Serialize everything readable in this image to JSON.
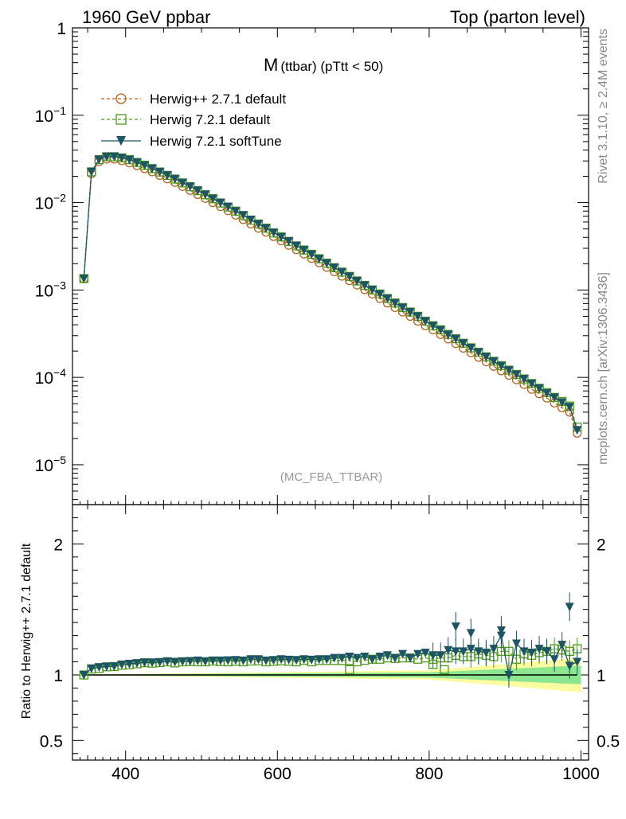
{
  "header": {
    "left": "1960 GeV ppbar",
    "right": "Top (parton level)"
  },
  "side_labels": {
    "rivet": "Rivet 3.1.10, ≥ 2.4M events",
    "source": "mcplots.cern.ch [arXiv:1306.3436]"
  },
  "chart_data": {
    "type": "line",
    "title_main": "M",
    "title_sub": "(ttbar) (pTtt < 50)",
    "watermark": "(MC_FBA_TTBAR)",
    "xlim": [
      330,
      1010
    ],
    "x_ticks": [
      "400",
      "600",
      "800",
      "1000"
    ],
    "x_tick_values": [
      400,
      600,
      800,
      1000
    ],
    "main_panel": {
      "yscale": "log",
      "ylim": [
        3.5e-06,
        1
      ],
      "y_ticks": [
        {
          "value": 1,
          "base": "1",
          "exp": ""
        },
        {
          "value": 0.1,
          "base": "10",
          "exp": "−1"
        },
        {
          "value": 0.01,
          "base": "10",
          "exp": "−2"
        },
        {
          "value": 0.001,
          "base": "10",
          "exp": "−3"
        },
        {
          "value": 0.0001,
          "base": "10",
          "exp": "−4"
        },
        {
          "value": 1e-05,
          "base": "10",
          "exp": "−5"
        }
      ],
      "x": [
        345,
        355,
        365,
        375,
        385,
        395,
        405,
        415,
        425,
        435,
        445,
        455,
        465,
        475,
        485,
        495,
        505,
        515,
        525,
        535,
        545,
        555,
        565,
        575,
        585,
        595,
        605,
        615,
        625,
        635,
        645,
        655,
        665,
        675,
        685,
        695,
        705,
        715,
        725,
        735,
        745,
        755,
        765,
        775,
        785,
        795,
        805,
        815,
        825,
        835,
        845,
        855,
        865,
        875,
        885,
        895,
        905,
        915,
        925,
        935,
        945,
        955,
        965,
        975,
        985,
        995
      ],
      "series": [
        {
          "name": "Herwig++ 2.7.1 default",
          "color": "#b85f1c",
          "marker": "circle",
          "line": "dashed",
          "values": [
            0.00135,
            0.0215,
            0.0295,
            0.0315,
            0.0315,
            0.0302,
            0.0285,
            0.0265,
            0.0245,
            0.0225,
            0.0205,
            0.0187,
            0.017,
            0.0153,
            0.0138,
            0.0124,
            0.0112,
            0.01,
            0.009,
            0.0081,
            0.0072,
            0.0064,
            0.0057,
            0.0051,
            0.0046,
            0.0041,
            0.00365,
            0.00325,
            0.0029,
            0.00258,
            0.0023,
            0.00205,
            0.00182,
            0.00162,
            0.00144,
            0.00128,
            0.00114,
            0.00101,
            0.0009,
            0.0008,
            0.00071,
            0.00063,
            0.00056,
            0.0005,
            0.00044,
            0.00039,
            0.00035,
            0.00031,
            0.000275,
            0.000244,
            0.000216,
            0.000192,
            0.00017,
            0.000151,
            0.000134,
            0.000119,
            0.000106,
            9.4e-05,
            8.3e-05,
            7.3e-05,
            6.5e-05,
            5.8e-05,
            5.1e-05,
            4.5e-05,
            4e-05,
            2.3e-05
          ]
        },
        {
          "name": "Herwig 7.2.1 default",
          "color": "#4f9a1a",
          "marker": "square",
          "line": "dashed",
          "values": [
            0.00135,
            0.0225,
            0.031,
            0.0335,
            0.0335,
            0.0325,
            0.031,
            0.0288,
            0.0268,
            0.0245,
            0.0224,
            0.0205,
            0.0186,
            0.0168,
            0.0152,
            0.0137,
            0.0123,
            0.0111,
            0.0099,
            0.0089,
            0.008,
            0.0071,
            0.0063,
            0.0057,
            0.0051,
            0.0045,
            0.00405,
            0.0036,
            0.0032,
            0.00287,
            0.00256,
            0.00228,
            0.00203,
            0.0018,
            0.0016,
            0.00143,
            0.00127,
            0.00113,
            0.001,
            0.0009,
            0.0008,
            0.00071,
            0.00063,
            0.00056,
            0.0005,
            0.00044,
            0.00039,
            0.00035,
            0.00031,
            0.000277,
            0.000246,
            0.000218,
            0.000194,
            0.000172,
            0.000153,
            0.000136,
            0.000121,
            0.000108,
            9.6e-05,
            8.5e-05,
            7.5e-05,
            6.7e-05,
            5.9e-05,
            5.3e-05,
            4.7e-05,
            2.7e-05
          ]
        },
        {
          "name": "Herwig 7.2.1 softTune",
          "color": "#1c5564",
          "marker": "triangle-down",
          "line": "solid",
          "values": [
            0.00135,
            0.0225,
            0.0312,
            0.0335,
            0.0336,
            0.0326,
            0.031,
            0.0289,
            0.0268,
            0.0246,
            0.0225,
            0.0206,
            0.0187,
            0.0169,
            0.0153,
            0.0138,
            0.0124,
            0.0111,
            0.01,
            0.009,
            0.008,
            0.0072,
            0.0064,
            0.0057,
            0.0051,
            0.00455,
            0.00405,
            0.00362,
            0.00322,
            0.00287,
            0.00256,
            0.00228,
            0.00203,
            0.00181,
            0.00161,
            0.00143,
            0.00127,
            0.00113,
            0.00101,
            0.0009,
            0.0008,
            0.00071,
            0.00063,
            0.00056,
            0.0005,
            0.00044,
            0.00039,
            0.00035,
            0.00031,
            0.000277,
            0.000246,
            0.000218,
            0.000194,
            0.000172,
            0.000153,
            0.000136,
            0.000121,
            0.000108,
            9.6e-05,
            8.5e-05,
            7.5e-05,
            6.6e-05,
            5.9e-05,
            5.2e-05,
            4.6e-05,
            2.5e-05
          ]
        }
      ]
    },
    "ratio_panel": {
      "ylabel": "Ratio to Herwig++ 2.7.1 default",
      "ylim": [
        0.35,
        2.3
      ],
      "y_ticks": [
        {
          "value": 0.5,
          "label": "0.5"
        },
        {
          "value": 1,
          "label": "1"
        },
        {
          "value": 2,
          "label": "2"
        }
      ],
      "reference": 1.0,
      "band_inner_halfwidth_at": {
        "x": [
          345,
          800,
          995
        ],
        "halfwidth": [
          0.003,
          0.02,
          0.07
        ]
      },
      "band_outer_halfwidth_at": {
        "x": [
          345,
          800,
          995
        ],
        "halfwidth": [
          0.004,
          0.035,
          0.13
        ]
      },
      "ratio_default": [
        1.0,
        1.045,
        1.05,
        1.062,
        1.064,
        1.074,
        1.078,
        1.085,
        1.093,
        1.09,
        1.094,
        1.1,
        1.092,
        1.1,
        1.102,
        1.1,
        1.1,
        1.106,
        1.102,
        1.1,
        1.104,
        1.1,
        1.106,
        1.108,
        1.1,
        1.104,
        1.108,
        1.104,
        1.1,
        1.112,
        1.1,
        1.11,
        1.11,
        1.11,
        1.11,
        1.11,
        1.1,
        1.112,
        1.12,
        1.12,
        1.13,
        1.126,
        1.13,
        1.13,
        1.12,
        1.13,
        1.12,
        1.13,
        1.13,
        1.15,
        1.14,
        1.14,
        1.16,
        1.15,
        1.14,
        1.18,
        1.18,
        1.12,
        1.16,
        1.15,
        1.17,
        1.18,
        1.2,
        1.19,
        1.18,
        1.2
      ],
      "ratio_default_extra_low": {
        "x": [
          695,
          805,
          820
        ],
        "values": [
          1.04,
          1.08,
          1.04
        ]
      },
      "ratio_softtune": [
        1.0,
        1.05,
        1.06,
        1.064,
        1.066,
        1.08,
        1.085,
        1.09,
        1.095,
        1.096,
        1.098,
        1.104,
        1.1,
        1.104,
        1.106,
        1.11,
        1.104,
        1.11,
        1.11,
        1.112,
        1.114,
        1.11,
        1.12,
        1.12,
        1.11,
        1.114,
        1.12,
        1.116,
        1.114,
        1.12,
        1.116,
        1.12,
        1.12,
        1.13,
        1.13,
        1.14,
        1.13,
        1.14,
        1.12,
        1.14,
        1.15,
        1.13,
        1.16,
        1.13,
        1.16,
        1.17,
        1.15,
        1.15,
        1.19,
        1.18,
        1.18,
        1.2,
        1.18,
        1.17,
        1.2,
        1.3,
        1.0,
        1.24,
        1.18,
        1.17,
        1.2,
        1.18,
        1.12,
        1.23,
        1.07,
        1.1
      ],
      "ratio_softtune_extra_high": {
        "x": [
          835,
          855,
          895,
          985
        ],
        "values": [
          1.37,
          1.32,
          1.34,
          1.52
        ]
      }
    }
  }
}
